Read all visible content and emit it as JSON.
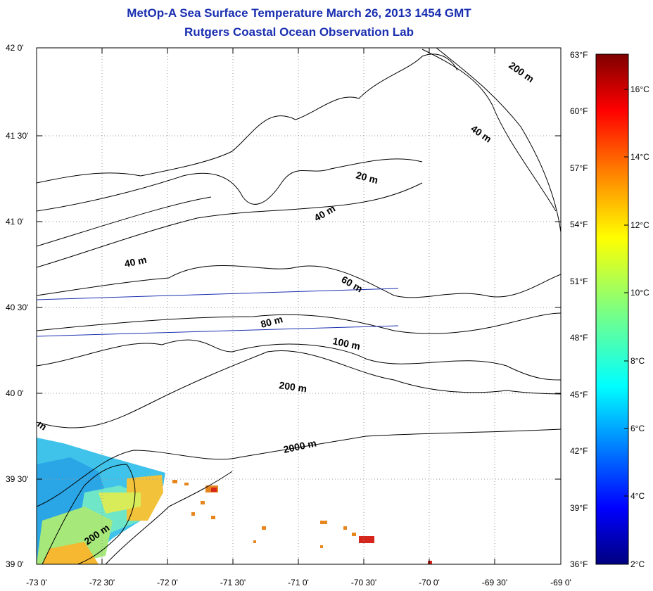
{
  "title": "MetOp-A Sea Surface Temperature March 26, 2013 1454 GMT",
  "subtitle": "Rutgers Coastal Ocean Observation Lab",
  "map": {
    "lon_range": [
      -73.0,
      -69.0
    ],
    "lat_range": [
      39.0,
      42.0
    ],
    "grid": true,
    "lon_ticks": [
      "-73 0'",
      "-72 30'",
      "-72 0'",
      "-71 30'",
      "-71 0'",
      "-70 30'",
      "-70 0'",
      "-69 30'",
      "-69 0'"
    ],
    "lat_ticks": [
      "39 0'",
      "39 30'",
      "40 0'",
      "40 30'",
      "41 0'",
      "41 30'",
      "42 0'"
    ],
    "isobath_labels": [
      "200 m",
      "40 m",
      "20 m",
      "40 m",
      "40 m",
      "60 m",
      "80 m",
      "100 m",
      "200 m",
      "2000 m",
      "200 m",
      "m"
    ]
  },
  "colorbar": {
    "fahrenheit_labels": [
      "63°F",
      "60°F",
      "57°F",
      "54°F",
      "51°F",
      "48°F",
      "45°F",
      "42°F",
      "39°F",
      "36°F"
    ],
    "celsius_labels": [
      "16°C",
      "14°C",
      "12°C",
      "10°C",
      "8°C",
      "6°C",
      "4°C",
      "2°C"
    ],
    "range_c": [
      2,
      17.2
    ],
    "colormap": [
      "#00007f",
      "#0000ff",
      "#007fff",
      "#00ffff",
      "#7fff7f",
      "#ffff00",
      "#ff7f00",
      "#ff0000",
      "#7f0000"
    ]
  }
}
